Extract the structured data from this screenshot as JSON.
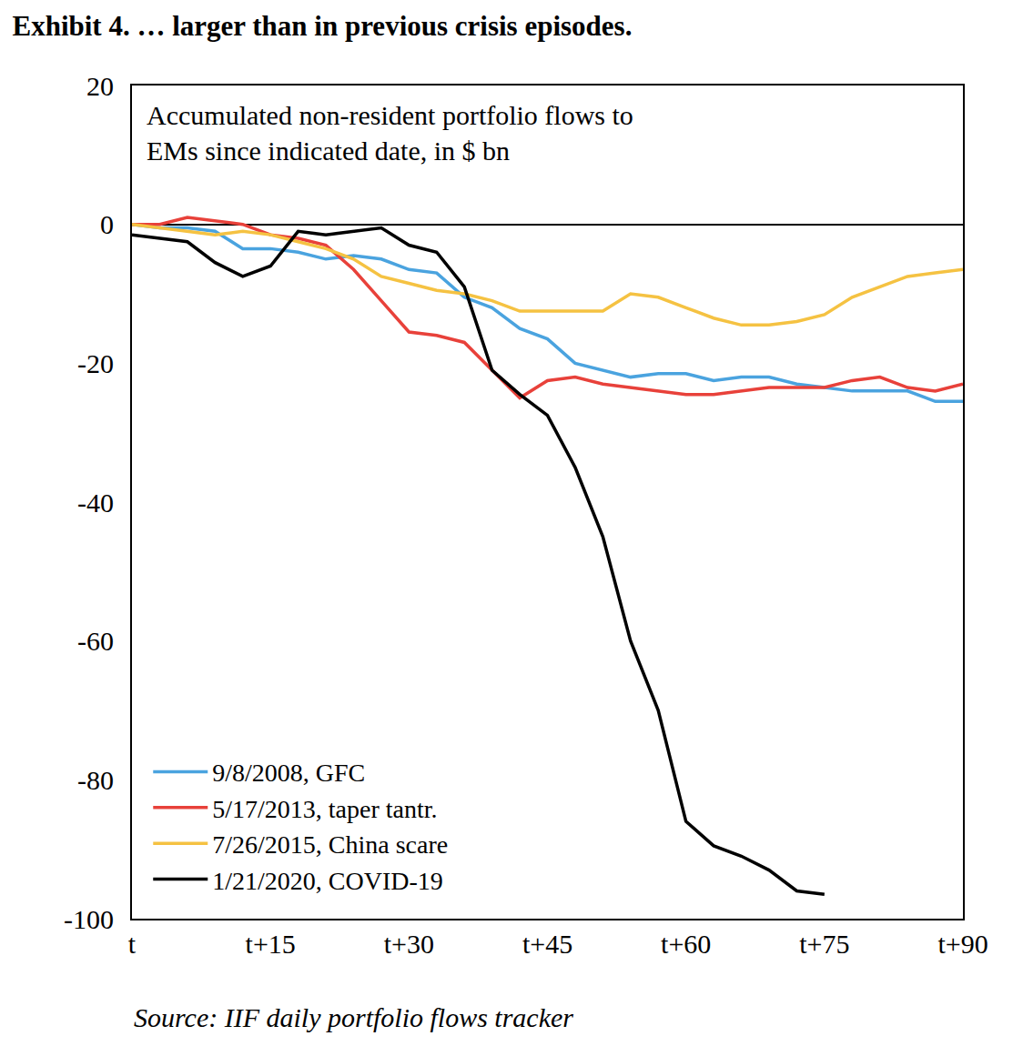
{
  "chart_data": {
    "type": "line",
    "title": "Exhibit 4. … larger than in previous crisis episodes.",
    "annotation": [
      "Accumulated non-resident portfolio flows to",
      "EMs since indicated date, in $ bn"
    ],
    "source": "Source: IIF daily portfolio flows tracker",
    "x": [
      0,
      3,
      6,
      9,
      12,
      15,
      18,
      21,
      24,
      27,
      30,
      33,
      36,
      39,
      42,
      45,
      48,
      51,
      54,
      57,
      60,
      63,
      66,
      69,
      72,
      75,
      78,
      81,
      84,
      87,
      90
    ],
    "series": [
      {
        "name": "9/8/2008, GFC",
        "color": "#4aa3df",
        "values": [
          0,
          -0.5,
          -0.5,
          -1,
          -3.5,
          -3.5,
          -4,
          -5,
          -4.5,
          -5,
          -6.5,
          -7,
          -10.5,
          -12,
          -15,
          -16.5,
          -20,
          -21,
          -22,
          -21.5,
          -21.5,
          -22.5,
          -22,
          -22,
          -23,
          -23.5,
          -24,
          -24,
          -24,
          -25.5,
          -25.5
        ]
      },
      {
        "name": "5/17/2013, taper tantr.",
        "color": "#e8413a",
        "values": [
          0,
          0,
          1,
          0.5,
          0,
          -1.5,
          -2,
          -3,
          -6.5,
          -11,
          -15.5,
          -16,
          -17,
          -21,
          -25,
          -22.5,
          -22,
          -23,
          -23.5,
          -24,
          -24.5,
          -24.5,
          -24,
          -23.5,
          -23.5,
          -23.5,
          -22.5,
          -22,
          -23.5,
          -24,
          -23
        ]
      },
      {
        "name": "7/26/2015, China scare",
        "color": "#f5c242",
        "values": [
          0,
          -0.5,
          -1,
          -1.5,
          -1,
          -1.5,
          -2.5,
          -3.5,
          -5,
          -7.5,
          -8.5,
          -9.5,
          -10,
          -11,
          -12.5,
          -12.5,
          -12.5,
          -12.5,
          -10,
          -10.5,
          -12,
          -13.5,
          -14.5,
          -14.5,
          -14,
          -13,
          -10.5,
          -9,
          -7.5,
          -7,
          -6.5
        ]
      },
      {
        "name": "1/21/2020, COVID-19",
        "color": "#000000",
        "values": [
          -1.5,
          -2,
          -2.5,
          -5.5,
          -7.5,
          -6,
          -1,
          -1.5,
          -1,
          -0.5,
          -3,
          -4,
          -9,
          -21,
          -24.5,
          -27.5,
          -35,
          -45,
          -60,
          -70,
          -86,
          -89.5,
          -91,
          -93,
          -96,
          -96.5,
          null,
          null,
          null,
          null,
          null
        ]
      }
    ],
    "xlim": [
      0,
      90
    ],
    "xticks": [
      {
        "value": 0,
        "label": "t"
      },
      {
        "value": 15,
        "label": "t+15"
      },
      {
        "value": 30,
        "label": "t+30"
      },
      {
        "value": 45,
        "label": "t+45"
      },
      {
        "value": 60,
        "label": "t+60"
      },
      {
        "value": 75,
        "label": "t+75"
      },
      {
        "value": 90,
        "label": "t+90"
      }
    ],
    "ylim": [
      -100,
      20
    ],
    "yticks": [
      -100,
      -80,
      -60,
      -40,
      -20,
      0,
      20
    ],
    "grid": false,
    "legend": "lower left"
  }
}
